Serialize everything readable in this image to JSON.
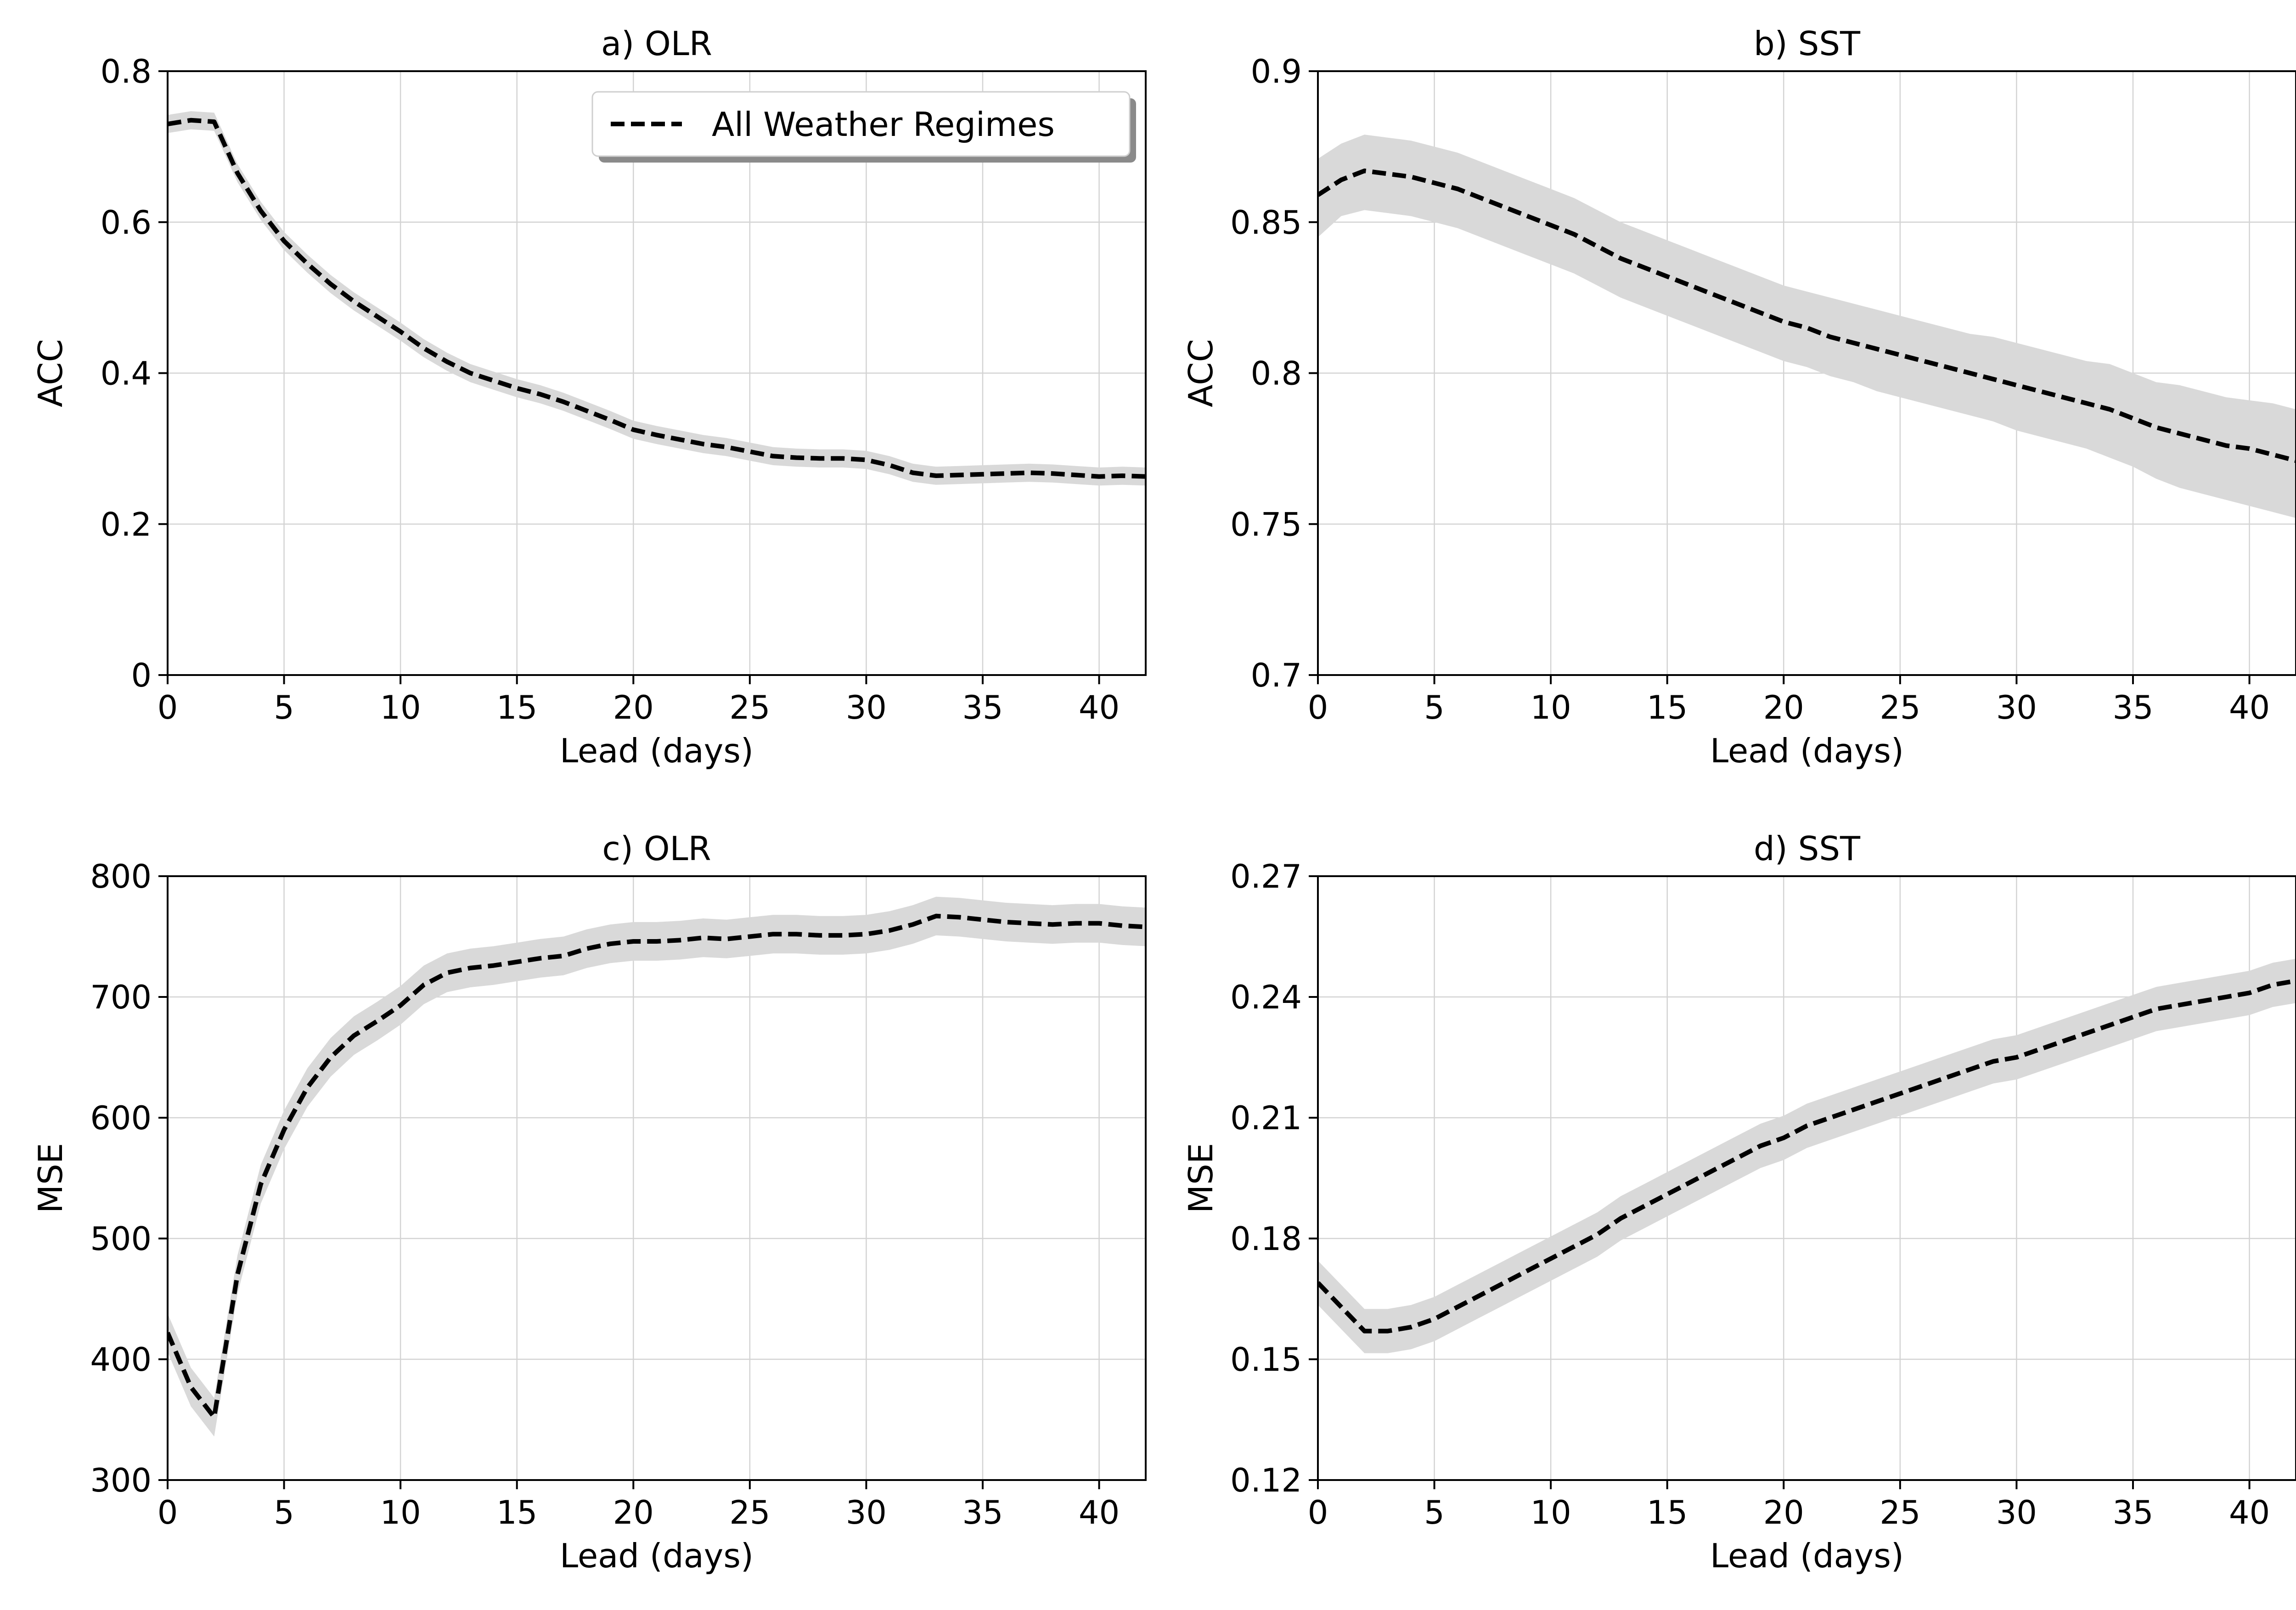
{
  "colors": {
    "line": "#000000",
    "band": "#d9d9d9",
    "grid": "#d3d3d3",
    "axes": "#000000"
  },
  "chart_data": [
    {
      "type": "line",
      "title": "a) OLR",
      "xlabel": "Lead (days)",
      "ylabel": "ACC",
      "xlim": [
        0,
        42
      ],
      "ylim": [
        0,
        0.8
      ],
      "xticks": [
        0,
        5,
        10,
        15,
        20,
        25,
        30,
        35,
        40
      ],
      "yticks": [
        0,
        0.2,
        0.4,
        0.6,
        0.8
      ],
      "ytick_labels": [
        "0",
        "0.2",
        "0.4",
        "0.6",
        "0.8"
      ],
      "grid": true,
      "legend": {
        "position": "top-right",
        "entries": [
          "All Weather Regimes"
        ]
      },
      "series": [
        {
          "name": "All Weather Regimes",
          "style": "dashed",
          "x": [
            0,
            1,
            2,
            3,
            4,
            5,
            6,
            7,
            8,
            9,
            10,
            11,
            12,
            13,
            14,
            15,
            16,
            17,
            18,
            19,
            20,
            21,
            22,
            23,
            24,
            25,
            26,
            27,
            28,
            29,
            30,
            31,
            32,
            33,
            34,
            35,
            36,
            37,
            38,
            39,
            40,
            41,
            42
          ],
          "y": [
            0.73,
            0.735,
            0.733,
            0.665,
            0.615,
            0.575,
            0.545,
            0.518,
            0.495,
            0.475,
            0.455,
            0.433,
            0.415,
            0.4,
            0.39,
            0.38,
            0.372,
            0.362,
            0.35,
            0.338,
            0.325,
            0.318,
            0.312,
            0.306,
            0.302,
            0.296,
            0.29,
            0.288,
            0.287,
            0.287,
            0.285,
            0.278,
            0.268,
            0.264,
            0.265,
            0.266,
            0.267,
            0.268,
            0.267,
            0.265,
            0.263,
            0.264,
            0.263
          ],
          "band": 0.012
        }
      ]
    },
    {
      "type": "line",
      "title": "b) SST",
      "xlabel": "Lead (days)",
      "ylabel": "ACC",
      "xlim": [
        0,
        42
      ],
      "ylim": [
        0.7,
        0.9
      ],
      "xticks": [
        0,
        5,
        10,
        15,
        20,
        25,
        30,
        35,
        40
      ],
      "yticks": [
        0.7,
        0.75,
        0.8,
        0.85,
        0.9
      ],
      "ytick_labels": [
        "0.7",
        "0.75",
        "0.8",
        "0.85",
        "0.9"
      ],
      "grid": true,
      "series": [
        {
          "name": "",
          "style": "dashed",
          "x": [
            0,
            1,
            2,
            3,
            4,
            5,
            6,
            7,
            8,
            9,
            10,
            11,
            12,
            13,
            14,
            15,
            16,
            17,
            18,
            19,
            20,
            21,
            22,
            23,
            24,
            25,
            26,
            27,
            28,
            29,
            30,
            31,
            32,
            33,
            34,
            35,
            36,
            37,
            38,
            39,
            40,
            41,
            42
          ],
          "y": [
            0.859,
            0.864,
            0.867,
            0.866,
            0.865,
            0.863,
            0.861,
            0.858,
            0.855,
            0.852,
            0.849,
            0.846,
            0.842,
            0.838,
            0.835,
            0.832,
            0.829,
            0.826,
            0.823,
            0.82,
            0.817,
            0.815,
            0.812,
            0.81,
            0.808,
            0.806,
            0.804,
            0.802,
            0.8,
            0.798,
            0.796,
            0.794,
            0.792,
            0.79,
            0.788,
            0.785,
            0.782,
            0.78,
            0.778,
            0.776,
            0.775,
            0.773,
            0.771
          ],
          "band_lower": [
            0.014,
            0.012,
            0.013,
            0.013,
            0.013,
            0.013,
            0.013,
            0.013,
            0.013,
            0.013,
            0.013,
            0.013,
            0.013,
            0.013,
            0.013,
            0.013,
            0.013,
            0.013,
            0.013,
            0.013,
            0.013,
            0.013,
            0.013,
            0.013,
            0.014,
            0.014,
            0.014,
            0.014,
            0.014,
            0.014,
            0.015,
            0.015,
            0.015,
            0.015,
            0.016,
            0.016,
            0.017,
            0.018,
            0.018,
            0.018,
            0.019,
            0.019,
            0.019
          ],
          "band_upper": [
            0.012,
            0.012,
            0.012,
            0.012,
            0.012,
            0.012,
            0.012,
            0.012,
            0.012,
            0.012,
            0.012,
            0.012,
            0.012,
            0.012,
            0.012,
            0.012,
            0.012,
            0.012,
            0.012,
            0.012,
            0.012,
            0.012,
            0.013,
            0.013,
            0.013,
            0.013,
            0.013,
            0.013,
            0.013,
            0.014,
            0.014,
            0.014,
            0.014,
            0.014,
            0.015,
            0.015,
            0.015,
            0.016,
            0.016,
            0.016,
            0.016,
            0.017,
            0.017
          ]
        }
      ]
    },
    {
      "type": "line",
      "title": "c) OLR",
      "xlabel": "Lead (days)",
      "ylabel": "MSE",
      "xlim": [
        0,
        42
      ],
      "ylim": [
        300,
        800
      ],
      "xticks": [
        0,
        5,
        10,
        15,
        20,
        25,
        30,
        35,
        40
      ],
      "yticks": [
        300,
        400,
        500,
        600,
        700,
        800
      ],
      "ytick_labels": [
        "300",
        "400",
        "500",
        "600",
        "700",
        "800"
      ],
      "grid": true,
      "series": [
        {
          "name": "",
          "style": "dashed",
          "x": [
            0,
            1,
            2,
            3,
            4,
            5,
            6,
            7,
            8,
            9,
            10,
            11,
            12,
            13,
            14,
            15,
            16,
            17,
            18,
            19,
            20,
            21,
            22,
            23,
            24,
            25,
            26,
            27,
            28,
            29,
            30,
            31,
            32,
            33,
            34,
            35,
            36,
            37,
            38,
            39,
            40,
            41,
            42
          ],
          "y": [
            422,
            377,
            352,
            470,
            545,
            590,
            625,
            650,
            668,
            680,
            693,
            710,
            720,
            724,
            726,
            729,
            732,
            734,
            740,
            744,
            746,
            746,
            747,
            749,
            748,
            750,
            752,
            752,
            751,
            751,
            752,
            755,
            760,
            767,
            766,
            764,
            762,
            761,
            760,
            761,
            761,
            759,
            758
          ],
          "band": 16
        }
      ]
    },
    {
      "type": "line",
      "title": "d) SST",
      "xlabel": "Lead (days)",
      "ylabel": "MSE",
      "xlim": [
        0,
        42
      ],
      "ylim": [
        0.12,
        0.27
      ],
      "xticks": [
        0,
        5,
        10,
        15,
        20,
        25,
        30,
        35,
        40
      ],
      "yticks": [
        0.12,
        0.15,
        0.18,
        0.21,
        0.24,
        0.27
      ],
      "ytick_labels": [
        "0.12",
        "0.15",
        "0.18",
        "0.21",
        "0.24",
        "0.27"
      ],
      "grid": true,
      "series": [
        {
          "name": "",
          "style": "dashed",
          "x": [
            0,
            1,
            2,
            3,
            4,
            5,
            6,
            7,
            8,
            9,
            10,
            11,
            12,
            13,
            14,
            15,
            16,
            17,
            18,
            19,
            20,
            21,
            22,
            23,
            24,
            25,
            26,
            27,
            28,
            29,
            30,
            31,
            32,
            33,
            34,
            35,
            36,
            37,
            38,
            39,
            40,
            41,
            42
          ],
          "y": [
            0.169,
            0.163,
            0.157,
            0.157,
            0.158,
            0.16,
            0.163,
            0.166,
            0.169,
            0.172,
            0.175,
            0.178,
            0.181,
            0.185,
            0.188,
            0.191,
            0.194,
            0.197,
            0.2,
            0.203,
            0.205,
            0.208,
            0.21,
            0.212,
            0.214,
            0.216,
            0.218,
            0.22,
            0.222,
            0.224,
            0.225,
            0.227,
            0.229,
            0.231,
            0.233,
            0.235,
            0.237,
            0.238,
            0.239,
            0.24,
            0.241,
            0.243,
            0.244
          ],
          "band": 0.0055
        }
      ]
    }
  ]
}
